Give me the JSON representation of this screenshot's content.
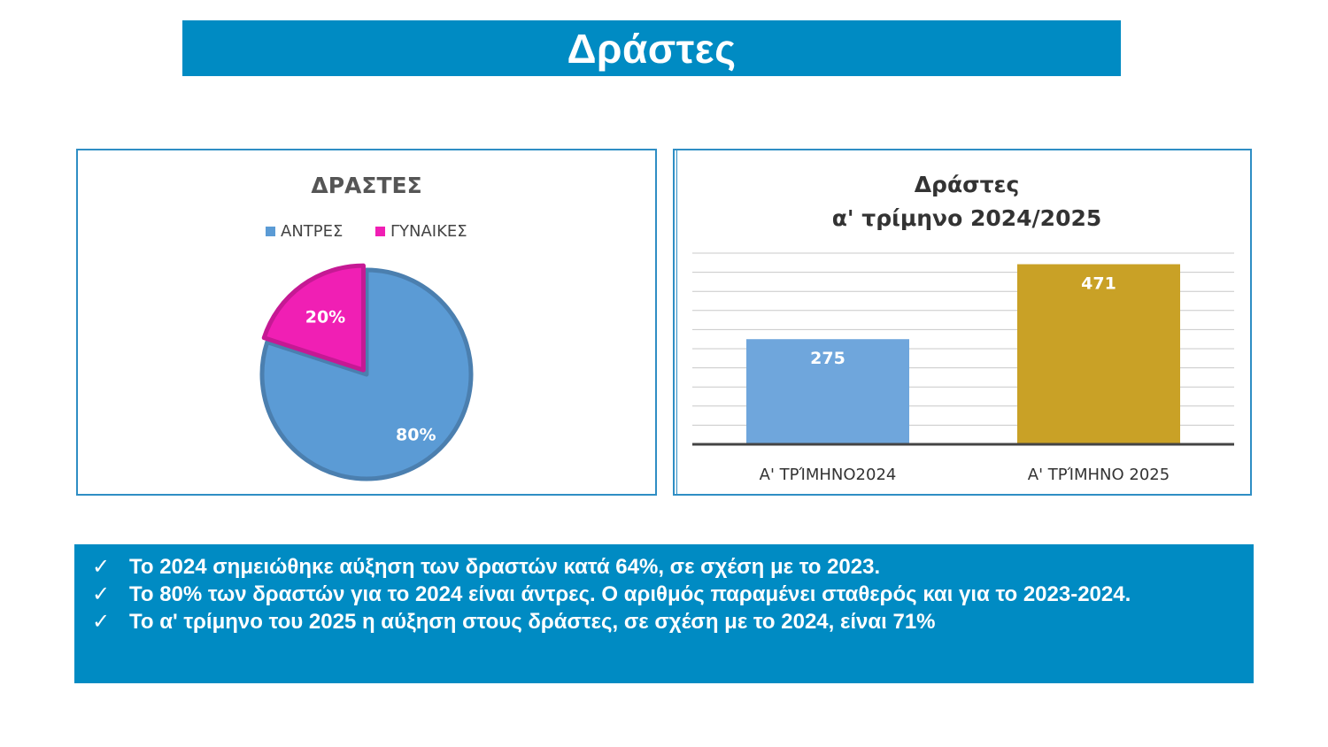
{
  "page_title": "Δράστες",
  "colors": {
    "title_bg": "#008bc3",
    "panel_border": "#2f8ec4",
    "men": "#5b9bd5",
    "women": "#f01fb4",
    "bar_2024": "#6fa6dc",
    "bar_2025": "#c9a126"
  },
  "chart_data": [
    {
      "type": "pie",
      "title": "ΔΡΑΣΤΕΣ",
      "legend_position": "top",
      "categories": [
        "ΑΝΤΡΕΣ",
        "ΓΥΝΑΙΚΕΣ"
      ],
      "values": [
        80,
        20
      ],
      "data_labels": [
        "80%",
        "20%"
      ],
      "colors": [
        "#5b9bd5",
        "#f01fb4"
      ]
    },
    {
      "type": "bar",
      "title_lines": [
        "Δράστες",
        "α' τρίμηνο 2024/2025"
      ],
      "categories": [
        "Α'  ΤΡΊΜΗΝΟ2024",
        "Α' ΤΡΊΜΗΝΟ 2025"
      ],
      "values": [
        275,
        471
      ],
      "data_labels": [
        "275",
        "471"
      ],
      "colors": [
        "#6fa6dc",
        "#c9a126"
      ],
      "ylim": [
        0,
        500
      ],
      "grid": true,
      "gridline_step": 50
    }
  ],
  "summary": {
    "check_symbol": "✓",
    "items": [
      "Το 2024 σημειώθηκε αύξηση των δραστών κατά 64%, σε σχέση με το 2023.",
      "Το 80% των δραστών για το 2024 είναι άντρες. Ο αριθμός παραμένει σταθερός και για το 2023-2024.",
      "Το α' τρίμηνο του 2025 η αύξηση στους δράστες, σε σχέση με το 2024, είναι 71%"
    ]
  }
}
